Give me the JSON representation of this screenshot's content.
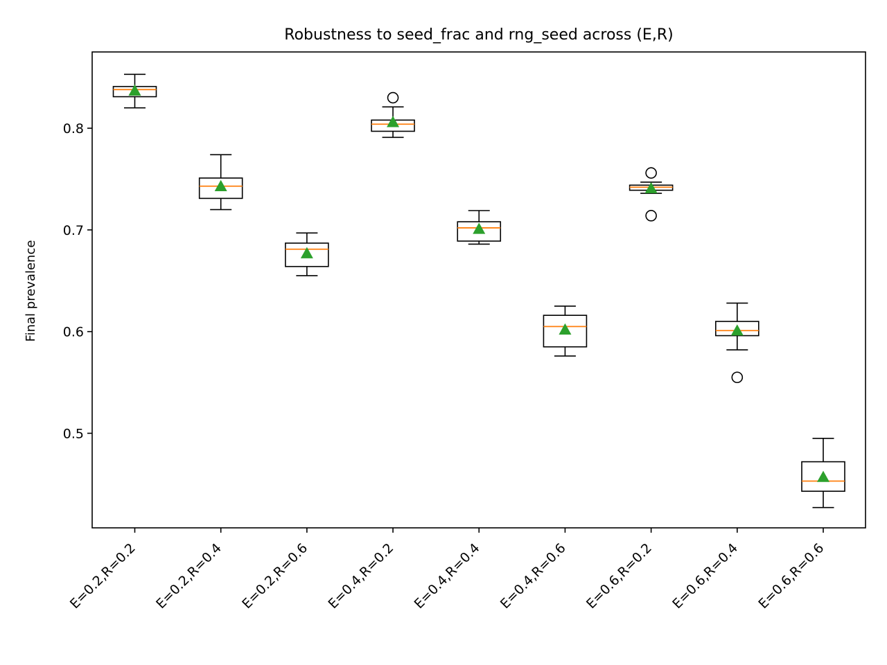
{
  "chart_data": {
    "type": "box",
    "title": "Robustness to seed_frac and rng_seed across (E,R)",
    "xlabel": "",
    "ylabel": "Final prevalence",
    "ylim": [
      0.407,
      0.875
    ],
    "yticks": [
      0.5,
      0.6,
      0.7,
      0.8
    ],
    "grid": false,
    "categories": [
      "E=0.2,R=0.2",
      "E=0.2,R=0.4",
      "E=0.2,R=0.6",
      "E=0.4,R=0.2",
      "E=0.4,R=0.4",
      "E=0.4,R=0.6",
      "E=0.6,R=0.2",
      "E=0.6,R=0.4",
      "E=0.6,R=0.6"
    ],
    "boxes": [
      {
        "whisker_low": 0.82,
        "q1": 0.831,
        "median": 0.838,
        "q3": 0.841,
        "whisker_high": 0.853,
        "mean": 0.837,
        "outliers": []
      },
      {
        "whisker_low": 0.72,
        "q1": 0.731,
        "median": 0.743,
        "q3": 0.751,
        "whisker_high": 0.774,
        "mean": 0.743,
        "outliers": []
      },
      {
        "whisker_low": 0.655,
        "q1": 0.664,
        "median": 0.681,
        "q3": 0.687,
        "whisker_high": 0.697,
        "mean": 0.677,
        "outliers": []
      },
      {
        "whisker_low": 0.791,
        "q1": 0.797,
        "median": 0.804,
        "q3": 0.808,
        "whisker_high": 0.821,
        "mean": 0.806,
        "outliers": [
          0.83
        ]
      },
      {
        "whisker_low": 0.686,
        "q1": 0.689,
        "median": 0.702,
        "q3": 0.708,
        "whisker_high": 0.719,
        "mean": 0.701,
        "outliers": []
      },
      {
        "whisker_low": 0.576,
        "q1": 0.585,
        "median": 0.605,
        "q3": 0.616,
        "whisker_high": 0.625,
        "mean": 0.602,
        "outliers": []
      },
      {
        "whisker_low": 0.736,
        "q1": 0.739,
        "median": 0.742,
        "q3": 0.744,
        "whisker_high": 0.747,
        "mean": 0.741,
        "outliers": [
          0.756,
          0.714
        ]
      },
      {
        "whisker_low": 0.582,
        "q1": 0.596,
        "median": 0.601,
        "q3": 0.61,
        "whisker_high": 0.628,
        "mean": 0.601,
        "outliers": [
          0.555
        ]
      },
      {
        "whisker_low": 0.427,
        "q1": 0.443,
        "median": 0.453,
        "q3": 0.472,
        "whisker_high": 0.495,
        "mean": 0.457,
        "outliers": []
      }
    ],
    "colors": {
      "box": "#000000",
      "median": "#ff7f0e",
      "mean_marker": "#2ca02c",
      "background": "#ffffff"
    }
  }
}
